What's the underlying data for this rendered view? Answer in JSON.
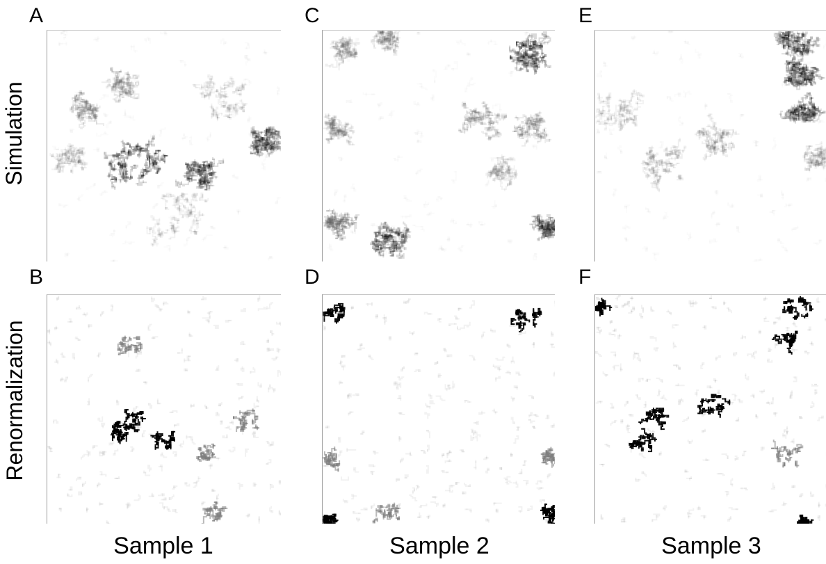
{
  "row_labels": [
    "Simulation",
    "Renormalization"
  ],
  "column_labels": [
    "Sample 1",
    "Sample 2",
    "Sample 3"
  ],
  "panels": [
    {
      "letter": "A",
      "row": "Simulation",
      "column": "Sample 1"
    },
    {
      "letter": "B",
      "row": "Renormalization",
      "column": "Sample 1"
    },
    {
      "letter": "C",
      "row": "Simulation",
      "column": "Sample 2"
    },
    {
      "letter": "D",
      "row": "Renormalization",
      "column": "Sample 2"
    },
    {
      "letter": "E",
      "row": "Simulation",
      "column": "Sample 3"
    },
    {
      "letter": "F",
      "row": "Renormalization",
      "column": "Sample 3"
    }
  ],
  "colors": {
    "background": "#ffffff",
    "cluster_dark": "#000000",
    "cluster_mid": "#8a8a8a",
    "cluster_faint": "#e6e6e6"
  }
}
